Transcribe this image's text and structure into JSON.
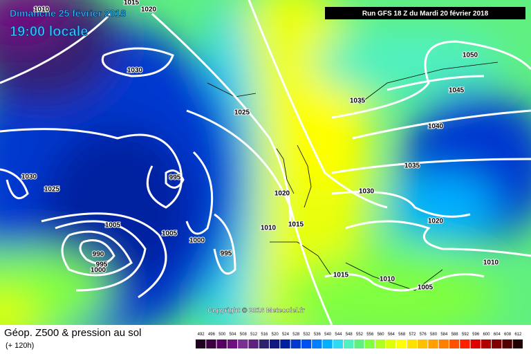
{
  "header": {
    "date": "Dimanche 25 février 2018",
    "time": "19:00 locale",
    "run": "Run GFS 18 Z du Mardi 20 février 2018"
  },
  "isobar_labels": [
    1010,
    1015,
    1020,
    1030,
    1025,
    1030,
    1025,
    995,
    1005,
    990,
    995,
    1000,
    1005,
    1000,
    995,
    1010,
    1015,
    1020,
    1035,
    1030,
    1050,
    1045,
    1040,
    1035,
    1020,
    1010,
    1015,
    1010,
    1005
  ],
  "copyright": "Copyright © 2018 Meteociel.fr",
  "footer": {
    "title": "Géop. Z500 & pression au sol",
    "lead": "(+ 120h)"
  },
  "legend": {
    "values": [
      492,
      496,
      500,
      504,
      508,
      512,
      516,
      520,
      524,
      528,
      532,
      536,
      540,
      544,
      548,
      552,
      556,
      560,
      564,
      568,
      572,
      576,
      580,
      584,
      588,
      592,
      596,
      600,
      604,
      608,
      612
    ],
    "colors": [
      "#200020",
      "#3a0040",
      "#550060",
      "#6e1080",
      "#7a3090",
      "#602080",
      "#302070",
      "#101880",
      "#0020a0",
      "#0038d0",
      "#0050f0",
      "#0080ff",
      "#00b0ff",
      "#30d8f0",
      "#50f0c0",
      "#60f080",
      "#80ff40",
      "#b0ff20",
      "#e0ff00",
      "#ffff00",
      "#ffe000",
      "#ffc000",
      "#ffa000",
      "#ff8000",
      "#ff5000",
      "#ff2000",
      "#e00000",
      "#b00000",
      "#800000",
      "#500000",
      "#200000"
    ]
  }
}
